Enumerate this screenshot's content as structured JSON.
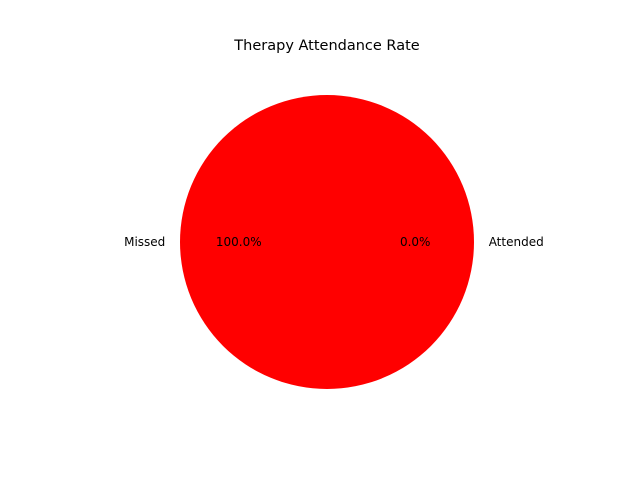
{
  "chart_data": {
    "type": "pie",
    "title": "Therapy Attendance Rate",
    "slices": [
      {
        "label": "Attended",
        "value": 0.0,
        "pct_label": "0.0%",
        "color": "#ff0000"
      },
      {
        "label": "Missed",
        "value": 100.0,
        "pct_label": "100.0%",
        "color": "#ff0000"
      }
    ]
  }
}
